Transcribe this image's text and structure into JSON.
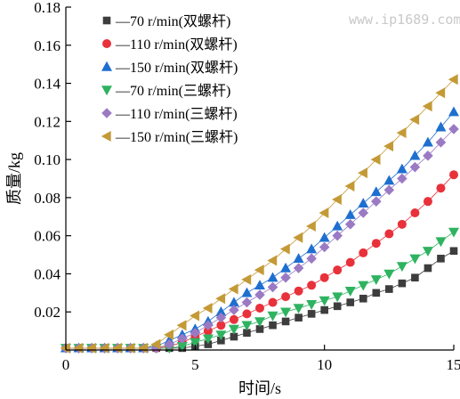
{
  "watermark": "www.ip1689.com",
  "chart_data": {
    "type": "scatter",
    "title": "",
    "xlabel": "时间/s",
    "ylabel": "质量/kg",
    "xlim": [
      0,
      15
    ],
    "ylim": [
      0,
      0.18
    ],
    "xticks": [
      "0",
      "5",
      "10",
      "15"
    ],
    "xtick_values": [
      0,
      5,
      10,
      15
    ],
    "yticks": [
      "0.02",
      "0.04",
      "0.06",
      "0.08",
      "0.10",
      "0.12",
      "0.14",
      "0.16",
      "0.18"
    ],
    "ytick_values": [
      0.02,
      0.04,
      0.06,
      0.08,
      0.1,
      0.12,
      0.14,
      0.16,
      0.18
    ],
    "grid": false,
    "legend_position": "top-left",
    "x": [
      0,
      0.5,
      1,
      1.5,
      2,
      2.5,
      3,
      3.5,
      4,
      4.5,
      5,
      5.5,
      6,
      6.5,
      7,
      7.5,
      8,
      8.5,
      9,
      9.5,
      10,
      10.5,
      11,
      11.5,
      12,
      12.5,
      13,
      13.5,
      14,
      14.5,
      15
    ],
    "series": [
      {
        "name": "—70 r/min(双螺杆)",
        "marker": "square",
        "color": "#3d3d3d",
        "values": [
          0.001,
          0.001,
          0.001,
          0.001,
          0.001,
          0.001,
          0.001,
          0.001,
          0.001,
          0.001,
          0.002,
          0.003,
          0.005,
          0.007,
          0.009,
          0.011,
          0.013,
          0.015,
          0.017,
          0.019,
          0.021,
          0.023,
          0.025,
          0.027,
          0.03,
          0.032,
          0.035,
          0.038,
          0.043,
          0.048,
          0.052
        ]
      },
      {
        "name": "—110 r/min(双螺杆)",
        "marker": "circle",
        "color": "#e8313a",
        "values": [
          0.001,
          0.001,
          0.001,
          0.001,
          0.001,
          0.001,
          0.001,
          0.001,
          0.002,
          0.004,
          0.007,
          0.01,
          0.013,
          0.016,
          0.019,
          0.022,
          0.025,
          0.028,
          0.031,
          0.034,
          0.038,
          0.042,
          0.046,
          0.051,
          0.056,
          0.061,
          0.066,
          0.072,
          0.078,
          0.085,
          0.092
        ]
      },
      {
        "name": "—150 r/min(双螺杆)",
        "marker": "triangle-up",
        "color": "#1e6fd0",
        "values": [
          0.001,
          0.001,
          0.001,
          0.001,
          0.001,
          0.001,
          0.001,
          0.002,
          0.005,
          0.008,
          0.011,
          0.015,
          0.02,
          0.025,
          0.03,
          0.034,
          0.038,
          0.043,
          0.048,
          0.053,
          0.059,
          0.065,
          0.071,
          0.077,
          0.083,
          0.089,
          0.095,
          0.102,
          0.109,
          0.117,
          0.125
        ]
      },
      {
        "name": "—70 r/min(三螺杆)",
        "marker": "triangle-down",
        "color": "#2eb360",
        "values": [
          0.001,
          0.001,
          0.001,
          0.001,
          0.001,
          0.001,
          0.001,
          0.001,
          0.001,
          0.002,
          0.004,
          0.006,
          0.008,
          0.011,
          0.013,
          0.015,
          0.018,
          0.02,
          0.022,
          0.024,
          0.026,
          0.028,
          0.031,
          0.034,
          0.037,
          0.04,
          0.044,
          0.048,
          0.052,
          0.057,
          0.062
        ]
      },
      {
        "name": "—110 r/min(三螺杆)",
        "marker": "diamond",
        "color": "#9b7ac4",
        "values": [
          0.001,
          0.001,
          0.001,
          0.001,
          0.001,
          0.001,
          0.001,
          0.001,
          0.003,
          0.006,
          0.009,
          0.013,
          0.017,
          0.021,
          0.025,
          0.029,
          0.033,
          0.038,
          0.043,
          0.048,
          0.054,
          0.06,
          0.066,
          0.072,
          0.078,
          0.084,
          0.09,
          0.096,
          0.102,
          0.109,
          0.116
        ]
      },
      {
        "name": "—150 r/min(三螺杆)",
        "marker": "triangle-left",
        "color": "#c49a37",
        "values": [
          0.001,
          0.001,
          0.001,
          0.001,
          0.001,
          0.001,
          0.001,
          0.003,
          0.008,
          0.013,
          0.018,
          0.022,
          0.027,
          0.032,
          0.037,
          0.042,
          0.047,
          0.053,
          0.059,
          0.065,
          0.072,
          0.079,
          0.086,
          0.093,
          0.1,
          0.107,
          0.114,
          0.121,
          0.128,
          0.135,
          0.142
        ]
      }
    ]
  }
}
